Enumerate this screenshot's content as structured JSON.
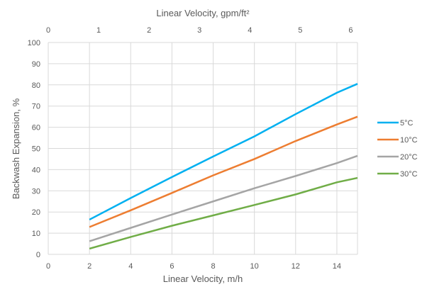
{
  "chart_data": {
    "type": "line",
    "xlabel": "Linear Velocity, m/h",
    "x2label": "Linear Velocity, gpm/ft²",
    "ylabel": "Backwash Expansion, %",
    "xlim": [
      0,
      15
    ],
    "x2lim": [
      0,
      6.135
    ],
    "ylim": [
      0,
      100
    ],
    "xticks": [
      0,
      2,
      4,
      6,
      8,
      10,
      12,
      14
    ],
    "x2ticks": [
      0,
      1,
      2,
      3,
      4,
      5,
      6
    ],
    "yticks": [
      0,
      10,
      20,
      30,
      40,
      50,
      60,
      70,
      80,
      90,
      100
    ],
    "grid": true,
    "legend_position": "right",
    "x": [
      2,
      4,
      6,
      8,
      10,
      12,
      14,
      15
    ],
    "series": [
      {
        "name": "5°C",
        "color": "#00b0f0",
        "values": [
          16.4,
          26.6,
          36.5,
          46.2,
          55.7,
          66.2,
          76.3,
          80.5
        ]
      },
      {
        "name": "10°C",
        "color": "#ed7d31",
        "values": [
          12.9,
          20.8,
          29.0,
          37.3,
          45.0,
          53.5,
          61.3,
          65.0
        ]
      },
      {
        "name": "20°C",
        "color": "#a5a5a5",
        "values": [
          6.2,
          12.5,
          18.8,
          25.0,
          31.2,
          37.0,
          43.1,
          46.5
        ]
      },
      {
        "name": "30°C",
        "color": "#70ad47",
        "values": [
          2.7,
          8.2,
          13.5,
          18.4,
          23.3,
          28.3,
          34.0,
          36.1
        ]
      }
    ]
  }
}
